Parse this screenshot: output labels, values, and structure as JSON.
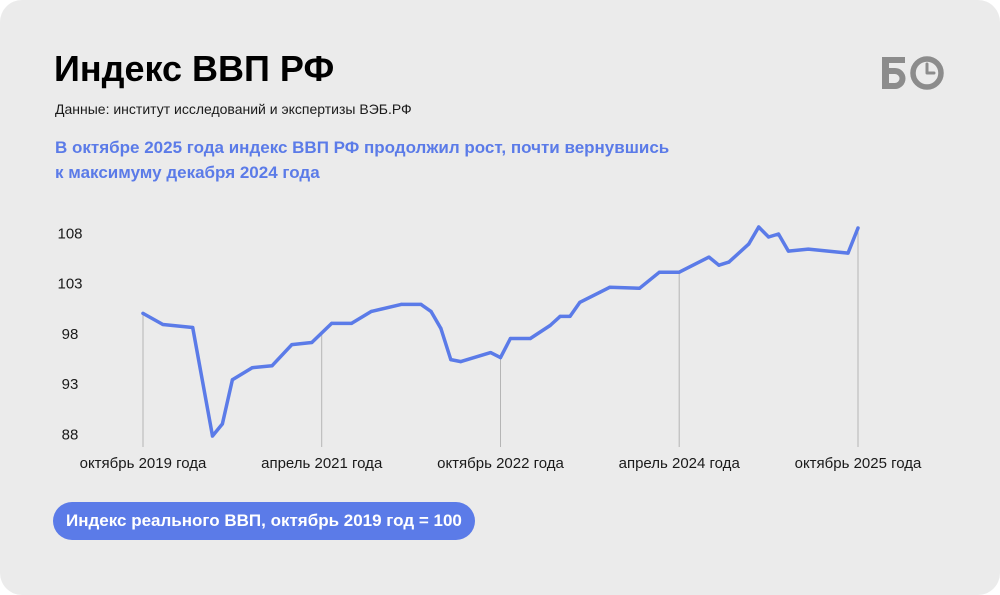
{
  "logo": {
    "text": "БО"
  },
  "colors": {
    "background": "#ebebeb",
    "accent": "#5b7be8",
    "tick_line": "#b5b5b5",
    "logo": "#8c8c8c"
  },
  "chart_data": {
    "type": "line",
    "title": "Индекс ВВП РФ",
    "subtitle": "Данные: институт исследований и экспертизы ВЭБ.РФ",
    "annotation": [
      "В октябре 2025 года индекс ВВП РФ продолжил рост, почти вернувшись",
      "к максимуму декабря 2024 года"
    ],
    "x": [
      "2019-10",
      "2019-12",
      "2020-03",
      "2020-05",
      "2020-06",
      "2020-07",
      "2020-09",
      "2020-11",
      "2021-01",
      "2021-03",
      "2021-05",
      "2021-07",
      "2021-09",
      "2021-12",
      "2022-02",
      "2022-03",
      "2022-04",
      "2022-05",
      "2022-06",
      "2022-09",
      "2022-10",
      "2022-11",
      "2023-01",
      "2023-03",
      "2023-04",
      "2023-05",
      "2023-06",
      "2023-08",
      "2023-09",
      "2023-12",
      "2024-02",
      "2024-04",
      "2024-07",
      "2024-08",
      "2024-09",
      "2024-11",
      "2024-12",
      "2025-01",
      "2025-02",
      "2025-03",
      "2025-05",
      "2025-09",
      "2025-10"
    ],
    "series": [
      {
        "name": "Индекс реального ВВП, октябрь 2019 год = 100",
        "values": [
          100.0,
          98.9,
          98.6,
          87.8,
          89.0,
          93.4,
          94.6,
          94.8,
          96.9,
          97.1,
          99.0,
          99.0,
          100.2,
          100.9,
          100.9,
          100.2,
          98.5,
          95.4,
          95.2,
          96.1,
          95.6,
          97.5,
          97.5,
          98.8,
          99.7,
          99.7,
          101.1,
          102.1,
          102.6,
          102.5,
          104.1,
          104.1,
          105.6,
          104.8,
          105.1,
          106.9,
          108.6,
          107.6,
          107.9,
          106.2,
          106.4,
          106.0,
          108.5
        ]
      }
    ],
    "yticks": [
      88,
      93,
      98,
      103,
      108
    ],
    "xticks": [
      {
        "date": "2019-10",
        "label": "октябрь 2019 года"
      },
      {
        "date": "2021-04",
        "label": "апрель 2021 года"
      },
      {
        "date": "2022-10",
        "label": "октябрь 2022 года"
      },
      {
        "date": "2024-04",
        "label": "апрель 2024 года"
      },
      {
        "date": "2025-10",
        "label": "октябрь 2025 года"
      }
    ],
    "ylim": [
      88,
      108
    ],
    "grid": false,
    "legend": "bottom-left"
  }
}
